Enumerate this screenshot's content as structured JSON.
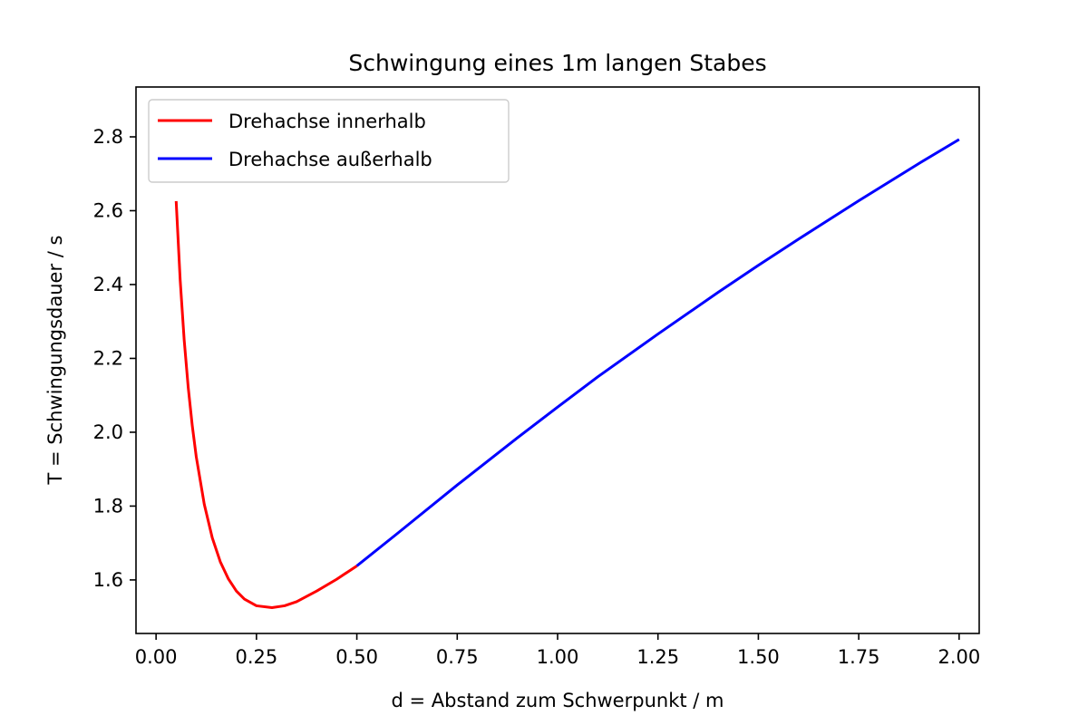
{
  "chart_data": {
    "type": "line",
    "title": "Schwingung eines 1m langen Stabes",
    "xlabel": "d = Abstand zum Schwerpunkt / m",
    "ylabel": "T = Schwingungsdauer / s",
    "xlim": [
      -0.05,
      2.05
    ],
    "ylim": [
      1.455,
      2.935
    ],
    "xticks": [
      0.0,
      0.25,
      0.5,
      0.75,
      1.0,
      1.25,
      1.5,
      1.75,
      2.0
    ],
    "xtick_labels": [
      "0.00",
      "0.25",
      "0.50",
      "0.75",
      "1.00",
      "1.25",
      "1.50",
      "1.75",
      "2.00"
    ],
    "yticks": [
      1.6,
      1.8,
      2.0,
      2.2,
      2.4,
      2.6,
      2.8
    ],
    "ytick_labels": [
      "1.6",
      "1.8",
      "2.0",
      "2.2",
      "2.4",
      "2.6",
      "2.8"
    ],
    "grid": false,
    "legend_position": "top-left",
    "series": [
      {
        "name": "Drehachse innerhalb",
        "color": "#ff0000",
        "x": [
          0.05,
          0.06,
          0.07,
          0.08,
          0.09,
          0.1,
          0.12,
          0.14,
          0.16,
          0.18,
          0.2,
          0.22,
          0.25,
          0.2887,
          0.32,
          0.35,
          0.4,
          0.45,
          0.5
        ],
        "y": [
          2.626,
          2.413,
          2.25,
          2.122,
          2.019,
          1.934,
          1.805,
          1.714,
          1.649,
          1.603,
          1.57,
          1.548,
          1.53,
          1.525,
          1.53,
          1.541,
          1.57,
          1.602,
          1.638
        ]
      },
      {
        "name": "Drehachse außerhalb",
        "color": "#0000ff",
        "x": [
          0.5,
          0.6,
          0.75,
          0.9,
          1.0,
          1.1,
          1.25,
          1.4,
          1.5,
          1.6,
          1.75,
          1.9,
          2.0
        ],
        "y": [
          1.638,
          1.725,
          1.857,
          1.985,
          2.068,
          2.15,
          2.266,
          2.379,
          2.452,
          2.523,
          2.627,
          2.728,
          2.793
        ]
      }
    ]
  }
}
